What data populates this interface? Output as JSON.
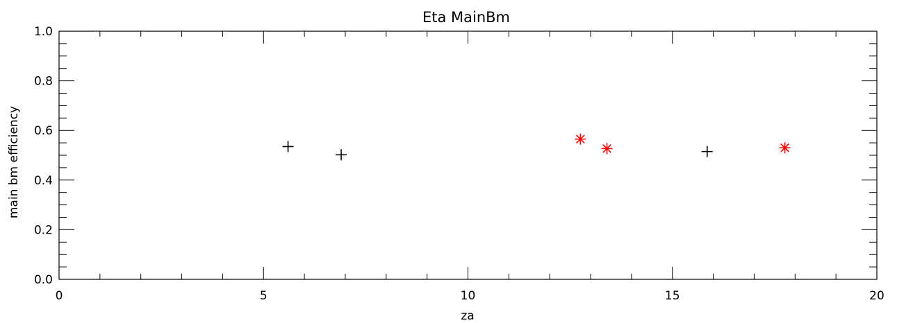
{
  "chart_data": {
    "type": "scatter",
    "title": "Eta MainBm",
    "xlabel": "za",
    "ylabel": "main bm efficiency",
    "xlim": [
      0,
      20
    ],
    "ylim": [
      0.0,
      1.0
    ],
    "x_ticks": [
      {
        "value": 0,
        "label": "0"
      },
      {
        "value": 5,
        "label": "5"
      },
      {
        "value": 10,
        "label": "10"
      },
      {
        "value": 15,
        "label": "15"
      },
      {
        "value": 20,
        "label": "20"
      }
    ],
    "y_ticks": [
      {
        "value": 0.0,
        "label": "0.0"
      },
      {
        "value": 0.2,
        "label": "0.2"
      },
      {
        "value": 0.4,
        "label": "0.4"
      },
      {
        "value": 0.6,
        "label": "0.6"
      },
      {
        "value": 0.8,
        "label": "0.8"
      },
      {
        "value": 1.0,
        "label": "1.0"
      }
    ],
    "x_minor_step": 1,
    "y_minor_step": 0.05,
    "grid": false,
    "series": [
      {
        "marker": "plus",
        "color": "#000000",
        "points": [
          {
            "x": 5.6,
            "y": 0.535
          },
          {
            "x": 6.9,
            "y": 0.502
          },
          {
            "x": 15.85,
            "y": 0.515
          }
        ]
      },
      {
        "marker": "asterisk",
        "color": "#ff0000",
        "points": [
          {
            "x": 12.75,
            "y": 0.565
          },
          {
            "x": 13.4,
            "y": 0.527
          },
          {
            "x": 17.75,
            "y": 0.53
          }
        ]
      }
    ]
  }
}
